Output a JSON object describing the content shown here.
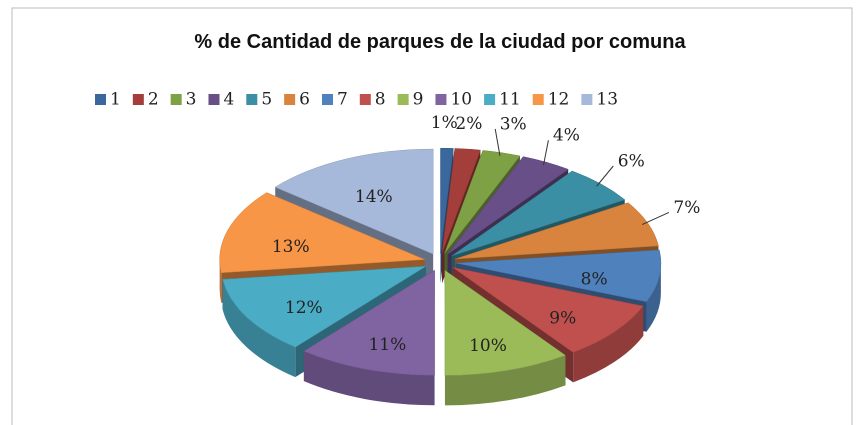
{
  "chart_data": {
    "type": "pie",
    "title": "% de Cantidad de parques de la ciudad por comuna",
    "categories": [
      "1",
      "2",
      "3",
      "4",
      "5",
      "6",
      "7",
      "8",
      "9",
      "10",
      "11",
      "12",
      "13"
    ],
    "values": [
      1,
      2,
      3,
      4,
      6,
      7,
      8,
      9,
      10,
      11,
      12,
      13,
      14
    ],
    "value_labels": [
      "1%",
      "2%",
      "3%",
      "4%",
      "6%",
      "7%",
      "8%",
      "9%",
      "10%",
      "11%",
      "12%",
      "13%",
      "14%"
    ],
    "colors": [
      "#3A679C",
      "#A33E3B",
      "#7FA145",
      "#684F88",
      "#3B8FA5",
      "#D8843E",
      "#4F81BD",
      "#C0504D",
      "#9BBB59",
      "#8064A2",
      "#4BACC6",
      "#F79646",
      "#A7B9DA"
    ],
    "legend": "top"
  }
}
